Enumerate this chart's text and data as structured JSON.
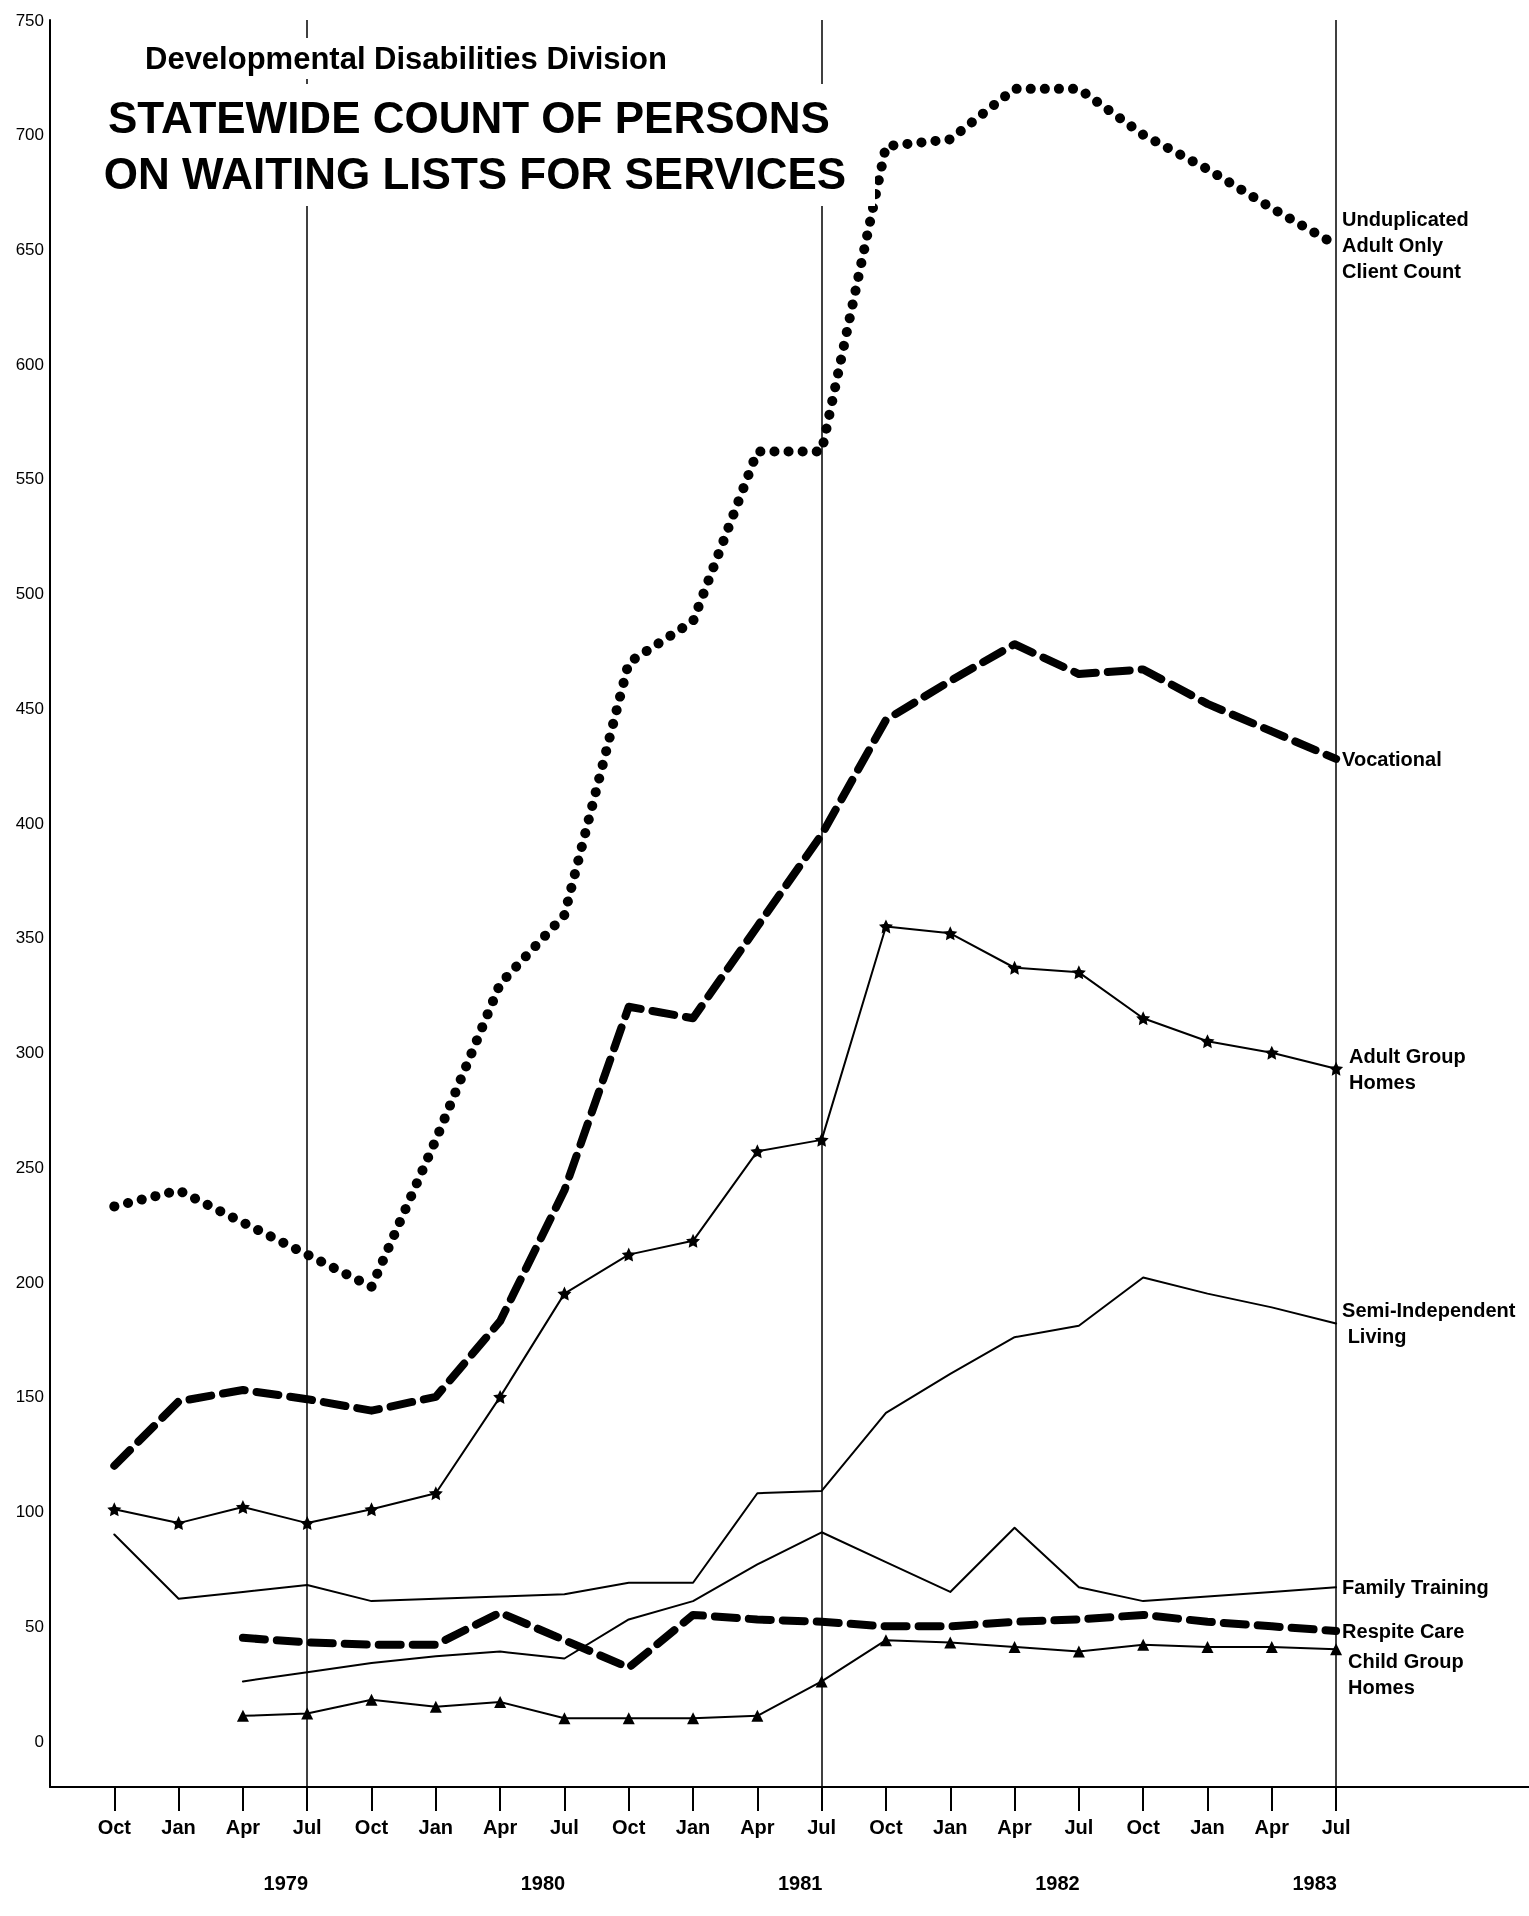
{
  "chart_data": {
    "type": "line",
    "subtitle": "Developmental Disabilities Division",
    "title": "STATEWIDE COUNT OF PERSONS ON WAITING LISTS FOR SERVICES",
    "x": [
      "1978-10",
      "1979-01",
      "1979-04",
      "1979-07",
      "1979-10",
      "1980-01",
      "1980-04",
      "1980-07",
      "1980-10",
      "1981-01",
      "1981-04",
      "1981-07",
      "1981-10",
      "1982-01",
      "1982-04",
      "1982-07",
      "1982-10",
      "1983-01",
      "1983-04",
      "1983-07"
    ],
    "series": [
      {
        "name": "Unduplicated Adult Only Client Count",
        "color": "#000000",
        "line_style": "dotted",
        "marker": "none",
        "values": [
          233,
          240,
          226,
          212,
          198,
          262,
          330,
          360,
          470,
          488,
          562,
          562,
          695,
          698,
          720,
          720,
          700,
          685,
          668,
          652
        ]
      },
      {
        "name": "Vocational",
        "color": "#000000",
        "line_style": "dashed",
        "marker": "none",
        "values": [
          120,
          148,
          153,
          149,
          144,
          150,
          183,
          240,
          320,
          315,
          355,
          395,
          445,
          462,
          478,
          465,
          467,
          452,
          440,
          428
        ]
      },
      {
        "name": "Adult Group Homes",
        "color": "#000000",
        "line_style": "solid",
        "marker": "star",
        "values": [
          101,
          95,
          102,
          95,
          101,
          108,
          150,
          195,
          212,
          218,
          257,
          262,
          355,
          352,
          337,
          335,
          315,
          305,
          300,
          293
        ]
      },
      {
        "name": "Semi-Independent Living",
        "color": "#000000",
        "line_style": "solid",
        "marker": "none",
        "values": [
          90,
          62,
          65,
          68,
          61,
          62,
          63,
          64,
          69,
          69,
          108,
          109,
          143,
          160,
          176,
          181,
          202,
          195,
          189,
          182
        ]
      },
      {
        "name": "Family Training",
        "color": "#000000",
        "line_style": "solid",
        "marker": "none",
        "values": [
          null,
          null,
          26,
          30,
          34,
          37,
          39,
          36,
          53,
          61,
          77,
          91,
          78,
          65,
          93,
          67,
          61,
          63,
          65,
          67
        ]
      },
      {
        "name": "Respite Care",
        "color": "#000000",
        "line_style": "dashed",
        "marker": "none",
        "values": [
          null,
          null,
          45,
          43,
          42,
          42,
          56,
          44,
          32,
          55,
          53,
          52,
          50,
          50,
          52,
          53,
          55,
          52,
          50,
          48
        ]
      },
      {
        "name": "Child Group Homes",
        "color": "#000000",
        "line_style": "solid",
        "marker": "triangle",
        "values": [
          null,
          null,
          11,
          12,
          18,
          15,
          17,
          10,
          10,
          10,
          11,
          26,
          44,
          43,
          41,
          39,
          42,
          41,
          41,
          40
        ]
      }
    ],
    "xlim": [
      "1978-07",
      "1984-04"
    ],
    "xticks": [
      {
        "value": "1978-10",
        "label": "Oct"
      },
      {
        "value": "1979-01",
        "label": "Jan"
      },
      {
        "value": "1979-04",
        "label": "Apr"
      },
      {
        "value": "1979-07",
        "label": "Jul"
      },
      {
        "value": "1979-10",
        "label": "Oct"
      },
      {
        "value": "1980-01",
        "label": "Jan"
      },
      {
        "value": "1980-04",
        "label": "Apr"
      },
      {
        "value": "1980-07",
        "label": "Jul"
      },
      {
        "value": "1980-10",
        "label": "Oct"
      },
      {
        "value": "1981-01",
        "label": "Jan"
      },
      {
        "value": "1981-04",
        "label": "Apr"
      },
      {
        "value": "1981-07",
        "label": "Jul"
      },
      {
        "value": "1981-10",
        "label": "Oct"
      },
      {
        "value": "1982-01",
        "label": "Jan"
      },
      {
        "value": "1982-04",
        "label": "Apr"
      },
      {
        "value": "1982-07",
        "label": "Jul"
      },
      {
        "value": "1982-10",
        "label": "Oct"
      },
      {
        "value": "1983-01",
        "label": "Jan"
      },
      {
        "value": "1983-04",
        "label": "Apr"
      },
      {
        "value": "1983-07",
        "label": "Jul"
      }
    ],
    "x2lim": [
      "1978-07",
      "1984-04"
    ],
    "x2ticks": [
      {
        "value": "1979-06",
        "label": "1979"
      },
      {
        "value": "1980-06",
        "label": "1980"
      },
      {
        "value": "1981-06",
        "label": "1981"
      },
      {
        "value": "1982-06",
        "label": "1982"
      },
      {
        "value": "1983-06",
        "label": "1983"
      }
    ],
    "ylim": [
      -20,
      750
    ],
    "yticks": [
      0,
      50,
      100,
      150,
      200,
      250,
      300,
      350,
      400,
      450,
      500,
      550,
      600,
      650,
      700,
      750
    ],
    "grid": false,
    "legend": "right",
    "ref_lines": [
      {
        "axis": "x",
        "value": "1979-07"
      },
      {
        "axis": "x",
        "value": "1981-07"
      },
      {
        "axis": "x",
        "value": "1983-07"
      }
    ]
  }
}
